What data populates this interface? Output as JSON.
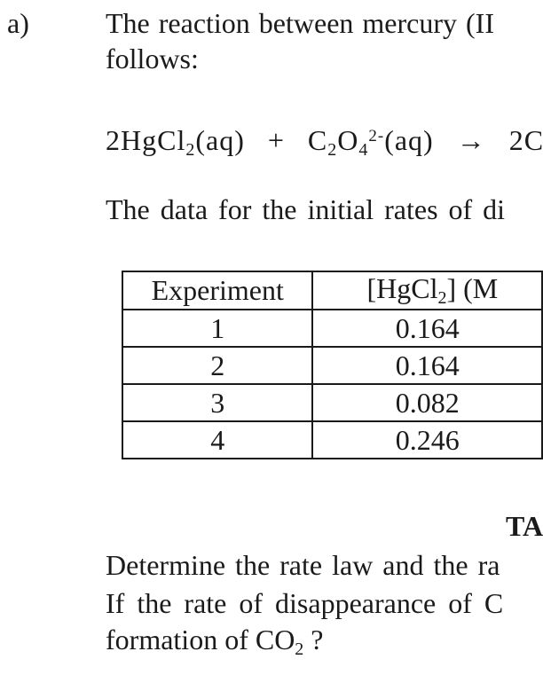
{
  "colors": {
    "background": "#ffffff",
    "text": "#1a1a1a",
    "table_border": "#1a1a1a"
  },
  "document": {
    "item_label": "a)",
    "intro": {
      "line1": "The reaction between mercury (II",
      "line2": "follows:"
    },
    "equation": {
      "p1": "2HgCl",
      "sub1": "2",
      "p2": "(aq)  +  C",
      "sub2": "2",
      "p3": "O",
      "sub3": "4",
      "sup1": "2-",
      "p4": "(aq)  →  2C"
    },
    "data_intro": "The data for the initial rates of di",
    "table": {
      "headers": {
        "experiment": "Experiment",
        "hgcl2": {
          "p1": "[HgCl",
          "sub1": "2",
          "p2": "] (M"
        }
      },
      "rows": [
        {
          "experiment": "1",
          "hgcl2_conc": "0.164"
        },
        {
          "experiment": "2",
          "hgcl2_conc": "0.164"
        },
        {
          "experiment": "3",
          "hgcl2_conc": "0.082"
        },
        {
          "experiment": "4",
          "hgcl2_conc": "0.246"
        }
      ]
    },
    "table_caption": "TA",
    "questions": {
      "line1": "Determine the rate law and the ra",
      "line2": "If the rate of disappearance of C",
      "line3": {
        "p1": "formation of CO",
        "sub1": "2",
        "p2": " ?"
      }
    }
  }
}
